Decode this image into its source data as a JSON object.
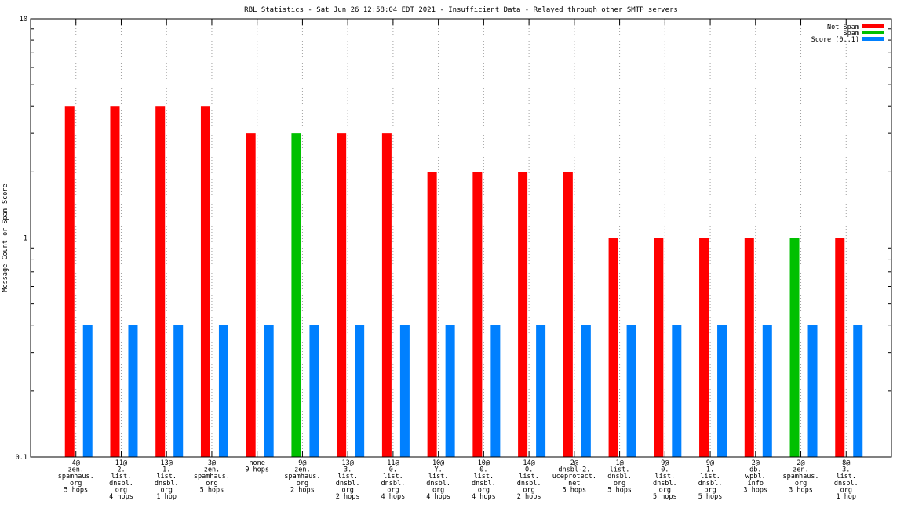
{
  "chart_data": {
    "type": "bar",
    "title": "RBL Statistics - Sat Jun 26 12:58:04 EDT 2021 - Insufficient Data - Relayed through other SMTP servers",
    "xlabel": "",
    "ylabel": "Message Count or Spam Score",
    "y_scale": "log",
    "ylim": [
      0.1,
      10
    ],
    "y_ticks": [
      "0.1",
      "1",
      "10"
    ],
    "grid": true,
    "legend_position": "top-right",
    "categories": [
      [
        "4@",
        "zen.",
        "spamhaus.",
        "org",
        "5 hops"
      ],
      [
        "11@",
        "2.",
        "list.",
        "dnsbl.",
        "org",
        "4 hops"
      ],
      [
        "13@",
        "1.",
        "list.",
        "dnsbl.",
        "org",
        "1 hop"
      ],
      [
        "3@",
        "zen.",
        "spamhaus.",
        "org",
        "5 hops"
      ],
      [
        "none",
        "9 hops"
      ],
      [
        "9@",
        "zen.",
        "spamhaus.",
        "org",
        "2 hops"
      ],
      [
        "13@",
        "3.",
        "list.",
        "dnsbl.",
        "org",
        "2 hops"
      ],
      [
        "11@",
        "0.",
        "list.",
        "dnsbl.",
        "org",
        "4 hops"
      ],
      [
        "10@",
        "Y.",
        "list.",
        "dnsbl.",
        "org",
        "4 hops"
      ],
      [
        "10@",
        "0.",
        "list.",
        "dnsbl.",
        "org",
        "4 hops"
      ],
      [
        "14@",
        "0.",
        "list.",
        "dnsbl.",
        "org",
        "2 hops"
      ],
      [
        "2@",
        "dnsbl-2.",
        "uceprotect.",
        "net",
        "5 hops"
      ],
      [
        "1@",
        "list.",
        "dnsbl.",
        "org",
        "5 hops"
      ],
      [
        "9@",
        "0.",
        "list.",
        "dnsbl.",
        "org",
        "5 hops"
      ],
      [
        "9@",
        "1.",
        "list.",
        "dnsbl.",
        "org",
        "5 hops"
      ],
      [
        "2@",
        "db.",
        "wpbl.",
        "info",
        "3 hops"
      ],
      [
        "2@",
        "zen.",
        "spamhaus.",
        "org",
        "3 hops"
      ],
      [
        "8@",
        "3.",
        "list.",
        "dnsbl.",
        "org",
        "1 hop"
      ]
    ],
    "series": [
      {
        "name": "Not Spam",
        "color": "#ff0000",
        "values": [
          4,
          4,
          4,
          4,
          3,
          0,
          3,
          3,
          2,
          2,
          2,
          2,
          1,
          1,
          1,
          1,
          0,
          1
        ]
      },
      {
        "name": "Spam",
        "color": "#00c000",
        "values": [
          0,
          0,
          0,
          0,
          0,
          3,
          0,
          0,
          0,
          0,
          0,
          0,
          0,
          0,
          0,
          0,
          1,
          0
        ]
      },
      {
        "name": "Score (0..1)",
        "color": "#0080ff",
        "values": [
          0.4,
          0.4,
          0.4,
          0.4,
          0.4,
          0.4,
          0.4,
          0.4,
          0.4,
          0.4,
          0.4,
          0.4,
          0.4,
          0.4,
          0.4,
          0.4,
          0.4,
          0.4
        ]
      }
    ]
  }
}
